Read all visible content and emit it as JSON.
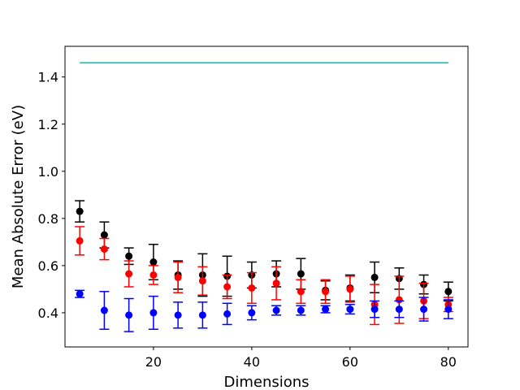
{
  "chart_data": {
    "type": "scatter",
    "title": "",
    "xlabel": "Dimensions",
    "ylabel": "Mean Absolute Error (eV)",
    "xlim": [
      2,
      84
    ],
    "ylim": [
      0.255,
      1.53
    ],
    "xticks": [
      20,
      40,
      60,
      80
    ],
    "yticks": [
      0.4,
      0.6,
      0.8,
      1.0,
      1.2,
      1.4
    ],
    "ytick_labels": [
      "0.4",
      "0.6",
      "0.8",
      "1.0",
      "1.2",
      "1.4"
    ],
    "grid": false,
    "legend": null,
    "reference_line": {
      "color": "#00bfbf",
      "x": [
        5,
        80
      ],
      "y": 1.46
    },
    "series": [
      {
        "color": "#000000",
        "x": [
          5,
          10,
          15,
          20,
          25,
          30,
          35,
          40,
          45,
          50,
          55,
          60,
          65,
          70,
          75,
          80
        ],
        "y": [
          0.83,
          0.73,
          0.64,
          0.615,
          0.56,
          0.56,
          0.555,
          0.56,
          0.565,
          0.565,
          0.495,
          0.505,
          0.55,
          0.545,
          0.52,
          0.49
        ],
        "yerr": [
          0.045,
          0.055,
          0.035,
          0.075,
          0.06,
          0.09,
          0.085,
          0.055,
          0.055,
          0.065,
          0.04,
          0.055,
          0.065,
          0.045,
          0.04,
          0.04
        ]
      },
      {
        "color": "#ff0000",
        "x": [
          5,
          10,
          15,
          20,
          25,
          30,
          35,
          40,
          45,
          50,
          55,
          60,
          65,
          70,
          75,
          80
        ],
        "y": [
          0.705,
          0.67,
          0.565,
          0.56,
          0.55,
          0.535,
          0.51,
          0.505,
          0.525,
          0.49,
          0.49,
          0.5,
          0.435,
          0.455,
          0.45,
          0.435
        ],
        "yerr": [
          0.06,
          0.045,
          0.055,
          0.04,
          0.065,
          0.06,
          0.05,
          0.065,
          0.07,
          0.05,
          0.05,
          0.055,
          0.085,
          0.1,
          0.075,
          0.03
        ]
      },
      {
        "color": "#0000ff",
        "x": [
          5,
          10,
          15,
          20,
          25,
          30,
          35,
          40,
          45,
          50,
          55,
          60,
          65,
          70,
          75,
          80
        ],
        "y": [
          0.48,
          0.41,
          0.39,
          0.4,
          0.39,
          0.39,
          0.395,
          0.4,
          0.41,
          0.41,
          0.415,
          0.415,
          0.415,
          0.415,
          0.415,
          0.415
        ],
        "yerr": [
          0.015,
          0.08,
          0.07,
          0.07,
          0.055,
          0.055,
          0.045,
          0.03,
          0.02,
          0.02,
          0.015,
          0.02,
          0.035,
          0.035,
          0.05,
          0.04
        ]
      }
    ]
  }
}
